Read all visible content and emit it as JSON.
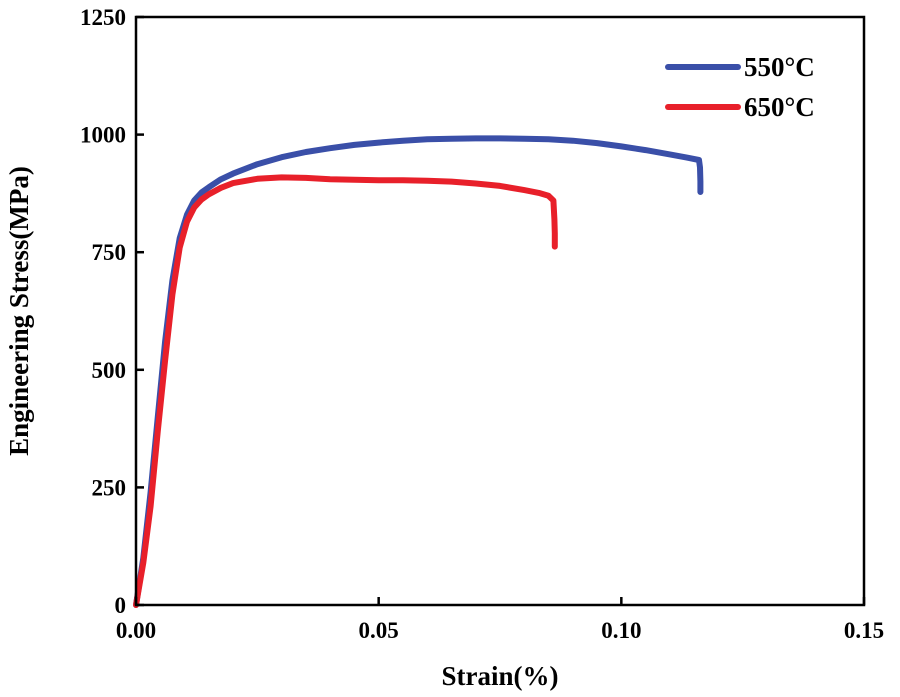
{
  "chart_data": {
    "type": "line",
    "title": "",
    "xlabel": "Strain(%)",
    "ylabel": "Engineering Stress(MPa)",
    "xlim": [
      0,
      0.15
    ],
    "ylim": [
      0,
      1250
    ],
    "xticks": [
      0.0,
      0.05,
      0.1,
      0.15
    ],
    "xtick_labels": [
      "0.00",
      "0.05",
      "0.10",
      "0.15"
    ],
    "yticks": [
      0,
      250,
      500,
      750,
      1000,
      1250
    ],
    "ytick_labels": [
      "0",
      "250",
      "500",
      "750",
      "1000",
      "1250"
    ],
    "legend_position": "top-right",
    "series": [
      {
        "name": "550°C",
        "color": "#3a4fa8",
        "x": [
          0.0,
          0.0015,
          0.003,
          0.0045,
          0.006,
          0.0075,
          0.009,
          0.0105,
          0.012,
          0.0135,
          0.015,
          0.0175,
          0.02,
          0.025,
          0.03,
          0.035,
          0.04,
          0.045,
          0.05,
          0.055,
          0.06,
          0.065,
          0.07,
          0.075,
          0.08,
          0.085,
          0.09,
          0.095,
          0.1,
          0.105,
          0.11,
          0.1135,
          0.116,
          0.1162,
          0.1163,
          0.1163
        ],
        "y": [
          0,
          100,
          240,
          400,
          560,
          690,
          780,
          830,
          860,
          877,
          888,
          905,
          917,
          937,
          952,
          963,
          971,
          978,
          983,
          987,
          990,
          991,
          992,
          992,
          991,
          990,
          987,
          982,
          975,
          967,
          958,
          951,
          946,
          930,
          900,
          878
        ]
      },
      {
        "name": "650°C",
        "color": "#e8202a",
        "x": [
          0.0,
          0.0015,
          0.003,
          0.0045,
          0.006,
          0.0075,
          0.009,
          0.0105,
          0.012,
          0.0135,
          0.015,
          0.0175,
          0.02,
          0.025,
          0.03,
          0.035,
          0.04,
          0.045,
          0.05,
          0.055,
          0.06,
          0.065,
          0.07,
          0.075,
          0.08,
          0.083,
          0.085,
          0.086,
          0.0862,
          0.0863,
          0.0863
        ],
        "y": [
          0,
          90,
          210,
          370,
          520,
          660,
          760,
          815,
          845,
          862,
          873,
          887,
          897,
          906,
          909,
          908,
          905,
          904,
          903,
          903,
          902,
          900,
          896,
          891,
          882,
          876,
          870,
          860,
          820,
          790,
          762
        ]
      }
    ]
  }
}
